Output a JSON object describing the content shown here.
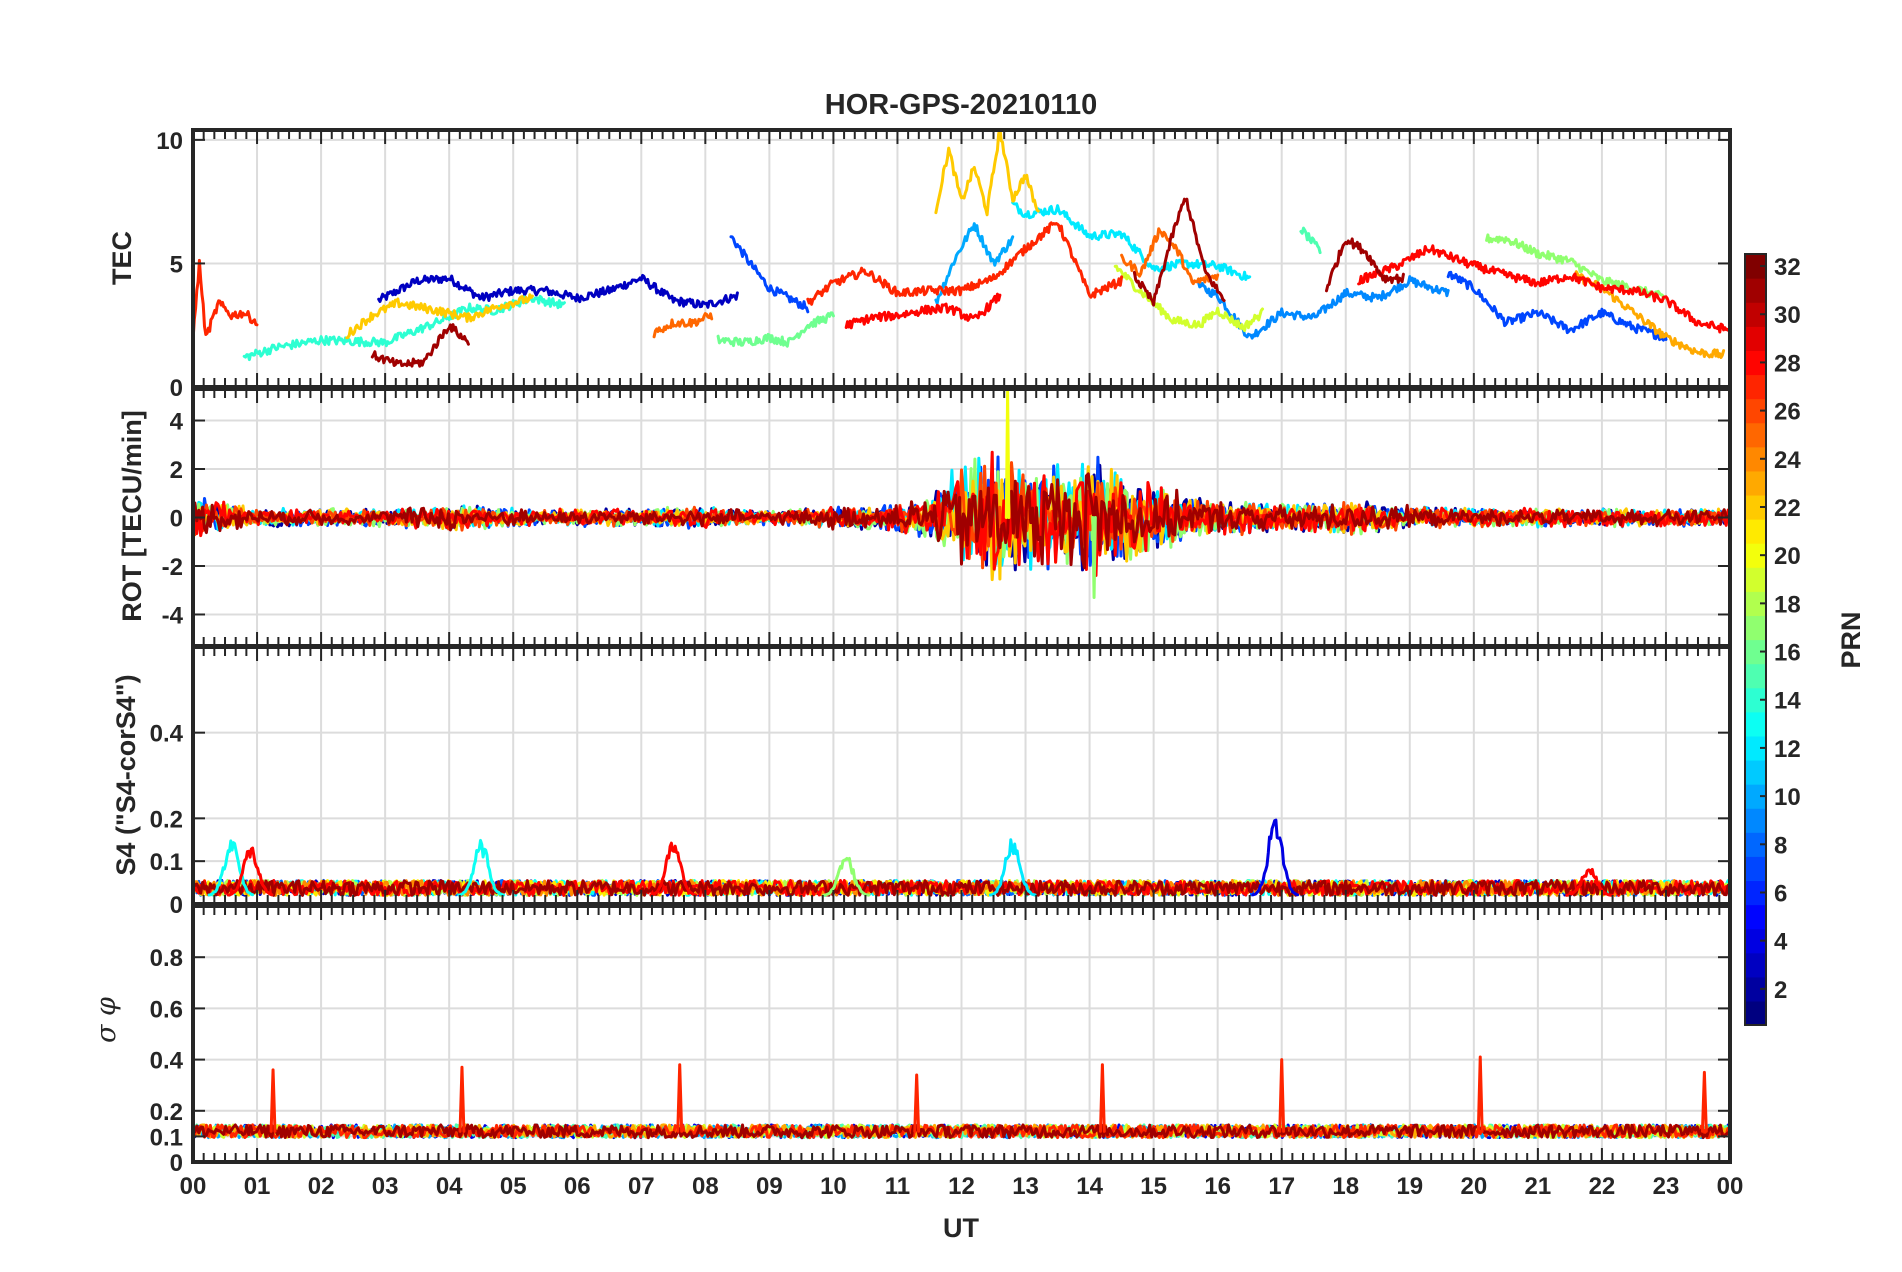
{
  "chart_data": {
    "type": "line",
    "title": "HOR-GPS-20210110",
    "xlabel": "UT",
    "xticks": [
      "00",
      "01",
      "02",
      "03",
      "04",
      "05",
      "06",
      "07",
      "08",
      "09",
      "10",
      "11",
      "12",
      "13",
      "14",
      "15",
      "16",
      "17",
      "18",
      "19",
      "20",
      "21",
      "22",
      "23",
      "00"
    ],
    "xlim": [
      0,
      24
    ],
    "colorbar": {
      "label": "PRN",
      "ticks": [
        "2",
        "4",
        "6",
        "8",
        "10",
        "12",
        "14",
        "16",
        "18",
        "20",
        "22",
        "24",
        "26",
        "28",
        "30",
        "32"
      ],
      "range": [
        1,
        32
      ],
      "colormap": "jet"
    },
    "panels": [
      {
        "ylabel": "TEC",
        "ylim": [
          0,
          10.4
        ],
        "yticks": [
          0,
          5,
          10
        ],
        "ytick_labels": [
          "0",
          "5",
          "10"
        ],
        "grid": true,
        "series": [
          {
            "prn": 3,
            "x": [
              2.9,
              3.5,
              4.0,
              4.5,
              5.0,
              5.5,
              6.0,
              6.5,
              7.0,
              7.5,
              8.0,
              8.5
            ],
            "y": [
              3.5,
              4.3,
              4.4,
              3.6,
              3.9,
              3.9,
              3.6,
              3.9,
              4.4,
              3.5,
              3.3,
              3.7
            ]
          },
          {
            "prn": 7,
            "x": [
              8.4,
              8.7,
              9.0,
              9.3,
              9.6
            ],
            "y": [
              6.1,
              5.0,
              4.0,
              3.6,
              3.2
            ]
          },
          {
            "prn": 9,
            "x": [
              15.7,
              16.0,
              16.5,
              17.0,
              17.5,
              18.0,
              18.5,
              19.0,
              19.6
            ],
            "y": [
              4.1,
              3.7,
              2.0,
              3.0,
              2.8,
              3.8,
              3.6,
              4.3,
              3.8
            ]
          },
          {
            "prn": 7,
            "x": [
              19.6,
              20.0,
              20.5,
              21.0,
              21.5,
              22.0,
              22.5,
              23.0
            ],
            "y": [
              4.6,
              4.0,
              2.6,
              3.0,
              2.3,
              3.0,
              2.4,
              2.0
            ]
          },
          {
            "prn": 10,
            "x": [
              11.6,
              11.9,
              12.2,
              12.5,
              12.8
            ],
            "y": [
              3.4,
              5.2,
              6.6,
              5.0,
              6.0
            ]
          },
          {
            "prn": 12,
            "x": [
              12.8,
              13.0,
              13.5,
              14.0,
              14.5,
              15.0,
              15.5,
              16.0,
              16.5
            ],
            "y": [
              7.4,
              7.0,
              7.2,
              6.1,
              6.2,
              4.8,
              5.0,
              4.9,
              4.4
            ]
          },
          {
            "prn": 14,
            "x": [
              0.8,
              1.3,
              2.0,
              3.0,
              3.8,
              4.3,
              4.7,
              5.3,
              5.8
            ],
            "y": [
              1.2,
              1.6,
              1.9,
              1.8,
              2.6,
              3.2,
              3.1,
              3.6,
              3.3
            ]
          },
          {
            "prn": 16,
            "x": [
              8.2,
              8.6,
              9.0,
              9.3,
              9.6,
              10.0
            ],
            "y": [
              1.9,
              1.8,
              2.0,
              1.8,
              2.5,
              2.9
            ]
          },
          {
            "prn": 15,
            "x": [
              17.3,
              17.6
            ],
            "y": [
              6.4,
              5.5
            ]
          },
          {
            "prn": 17,
            "x": [
              20.2,
              20.5,
              21.0,
              21.5,
              22.0,
              22.5,
              23.0
            ],
            "y": [
              6.0,
              6.0,
              5.4,
              5.1,
              4.3,
              4.0,
              3.6
            ]
          },
          {
            "prn": 19,
            "x": [
              14.4,
              14.7,
              15.0,
              15.3,
              15.7,
              16.0,
              16.4,
              16.7
            ],
            "y": [
              4.9,
              4.1,
              3.4,
              2.7,
              2.5,
              3.1,
              2.4,
              3.0
            ]
          },
          {
            "prn": 22,
            "x": [
              11.6,
              11.8,
              12.0,
              12.2,
              12.4,
              12.6,
              12.8,
              13.0,
              13.2
            ],
            "y": [
              7.2,
              9.6,
              7.5,
              8.9,
              7.1,
              10.4,
              7.6,
              8.6,
              7.0
            ]
          },
          {
            "prn": 22,
            "x": [
              2.4,
              2.8,
              3.2,
              3.8,
              4.3,
              4.8,
              5.3
            ],
            "y": [
              2.1,
              2.9,
              3.4,
              3.1,
              2.8,
              3.3,
              3.6
            ]
          },
          {
            "prn": 23,
            "x": [
              21.6,
              22.0,
              22.5,
              23.0,
              23.5,
              23.9
            ],
            "y": [
              4.5,
              4.0,
              3.0,
              2.0,
              1.4,
              1.3
            ]
          },
          {
            "prn": 25,
            "x": [
              14.5,
              14.8,
              15.1,
              15.4,
              15.6,
              16.0
            ],
            "y": [
              5.2,
              4.6,
              6.4,
              5.4,
              4.2,
              4.5
            ]
          },
          {
            "prn": 25,
            "x": [
              7.2,
              7.5,
              7.8,
              8.1
            ],
            "y": [
              2.2,
              2.6,
              2.6,
              2.9
            ]
          },
          {
            "prn": 27,
            "x": [
              0.0,
              0.1,
              0.2,
              0.4,
              0.6,
              0.8,
              1.0
            ],
            "y": [
              2.0,
              5.0,
              2.0,
              3.4,
              2.9,
              3.0,
              2.6
            ]
          },
          {
            "prn": 27,
            "x": [
              9.6,
              10.0,
              10.5,
              11.0,
              11.5,
              12.0,
              12.5,
              13.0,
              13.5,
              14.0,
              14.5
            ],
            "y": [
              3.4,
              4.2,
              4.7,
              3.8,
              3.9,
              3.9,
              4.4,
              5.6,
              6.7,
              3.7,
              4.3
            ]
          },
          {
            "prn": 28,
            "x": [
              18.2,
              18.8,
              19.3,
              19.9,
              20.4,
              21.0,
              21.5,
              22.0,
              22.5,
              23.0,
              23.5,
              24.0
            ],
            "y": [
              4.3,
              4.9,
              5.6,
              5.0,
              4.6,
              4.2,
              4.5,
              4.0,
              3.9,
              3.5,
              2.6,
              2.3
            ]
          },
          {
            "prn": 28,
            "x": [
              10.2,
              10.6,
              11.0,
              11.4,
              11.8,
              12.2,
              12.6
            ],
            "y": [
              2.5,
              2.8,
              2.9,
              3.1,
              3.2,
              2.7,
              3.7
            ]
          },
          {
            "prn": 31,
            "x": [
              14.7,
              15.0,
              15.3,
              15.5,
              15.8,
              16.1
            ],
            "y": [
              4.5,
              3.4,
              6.2,
              7.7,
              4.7,
              3.5
            ]
          },
          {
            "prn": 31,
            "x": [
              17.7,
              18.0,
              18.3,
              18.6,
              18.9
            ],
            "y": [
              4.0,
              6.0,
              5.5,
              4.4,
              4.4
            ]
          },
          {
            "prn": 31,
            "x": [
              2.8,
              3.2,
              3.6,
              4.0,
              4.3
            ],
            "y": [
              1.3,
              0.9,
              1.0,
              2.5,
              1.8
            ]
          }
        ]
      },
      {
        "ylabel": "ROT [TECU/min]",
        "ylim": [
          -5.3,
          5.3
        ],
        "yticks": [
          -4,
          -2,
          0,
          2,
          4
        ],
        "ytick_labels": [
          "-4",
          "-2",
          "0",
          "2",
          "4"
        ],
        "grid": true,
        "envelope": {
          "x": [
            0,
            1,
            2,
            3,
            4,
            5,
            6,
            7,
            8,
            9,
            10,
            11,
            11.5,
            12,
            12.5,
            13,
            13.5,
            14,
            14.5,
            15,
            15.5,
            16,
            17,
            18,
            19,
            20,
            21,
            22,
            23,
            24
          ],
          "amplitude": [
            1.0,
            0.4,
            0.4,
            0.4,
            0.6,
            0.4,
            0.4,
            0.4,
            0.5,
            0.3,
            0.5,
            0.6,
            1.0,
            2.5,
            3.0,
            2.6,
            2.4,
            2.8,
            2.0,
            1.6,
            1.0,
            0.8,
            0.6,
            0.8,
            0.5,
            0.4,
            0.4,
            0.4,
            0.4,
            0.4
          ]
        },
        "peak_max": 5.2,
        "peak_min": -3.3
      },
      {
        "ylabel": "S4 (\"S4-corS4\")",
        "ylim": [
          0,
          0.6
        ],
        "yticks": [
          0,
          0.1,
          0.2,
          0.4
        ],
        "ytick_labels": [
          "0",
          "0.1",
          "0.2",
          "0.4"
        ],
        "grid": true,
        "baseline": 0.02,
        "events": [
          {
            "x": 0.6,
            "y": 0.16,
            "prn": 13
          },
          {
            "x": 0.9,
            "y": 0.14,
            "prn": 28
          },
          {
            "x": 4.5,
            "y": 0.15,
            "prn": 13
          },
          {
            "x": 7.5,
            "y": 0.15,
            "prn": 28
          },
          {
            "x": 10.2,
            "y": 0.12,
            "prn": 17
          },
          {
            "x": 12.8,
            "y": 0.16,
            "prn": 12
          },
          {
            "x": 16.9,
            "y": 0.21,
            "prn": 4
          },
          {
            "x": 21.8,
            "y": 0.09,
            "prn": 28
          }
        ]
      },
      {
        "ylabel": "σ φ",
        "ylim": [
          0,
          1.0
        ],
        "yticks": [
          0,
          0.1,
          0.2,
          0.4,
          0.6,
          0.8
        ],
        "ytick_labels": [
          "0",
          "0.1",
          "0.2",
          "0.4",
          "0.6",
          "0.8"
        ],
        "grid": true,
        "baseline": 0.12,
        "spikes": [
          {
            "x": 1.25,
            "y": 0.36
          },
          {
            "x": 4.2,
            "y": 0.37
          },
          {
            "x": 7.6,
            "y": 0.38
          },
          {
            "x": 11.3,
            "y": 0.34
          },
          {
            "x": 14.2,
            "y": 0.38
          },
          {
            "x": 17.0,
            "y": 0.4
          },
          {
            "x": 20.1,
            "y": 0.41
          },
          {
            "x": 23.6,
            "y": 0.35
          }
        ]
      }
    ]
  },
  "colors": {
    "frame": "#262626",
    "grid": "#dcdcdc",
    "background": "#ffffff"
  }
}
